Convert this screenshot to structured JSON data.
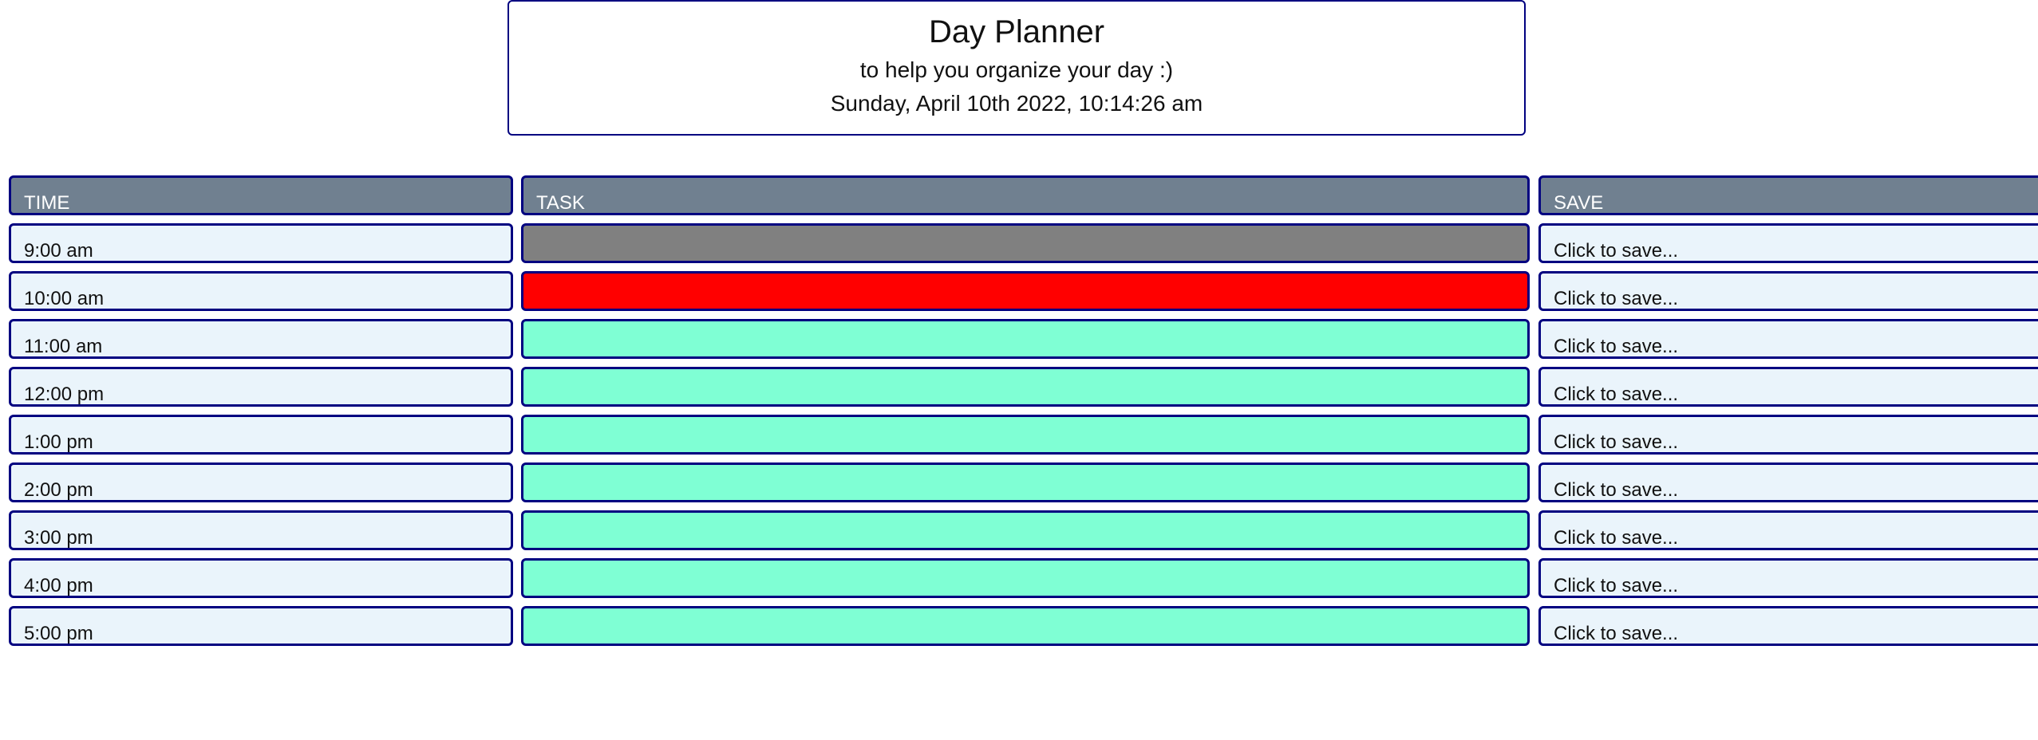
{
  "header": {
    "title": "Day Planner",
    "subtitle": "to help you organize your day :)",
    "datetime": "Sunday, April 10th 2022, 10:14:26 am"
  },
  "table": {
    "columns": [
      "TIME",
      "TASK",
      "SAVE"
    ],
    "save_label": "Click to save...",
    "status_colors": {
      "past": "#808080",
      "present": "#ff0000",
      "future": "#7fffd4"
    },
    "rows": [
      {
        "time": "9:00 am",
        "task": "",
        "status": "past"
      },
      {
        "time": "10:00 am",
        "task": "",
        "status": "present"
      },
      {
        "time": "11:00 am",
        "task": "",
        "status": "future"
      },
      {
        "time": "12:00 pm",
        "task": "",
        "status": "future"
      },
      {
        "time": "1:00 pm",
        "task": "",
        "status": "future"
      },
      {
        "time": "2:00 pm",
        "task": "",
        "status": "future"
      },
      {
        "time": "3:00 pm",
        "task": "",
        "status": "future"
      },
      {
        "time": "4:00 pm",
        "task": "",
        "status": "future"
      },
      {
        "time": "5:00 pm",
        "task": "",
        "status": "future"
      }
    ]
  }
}
